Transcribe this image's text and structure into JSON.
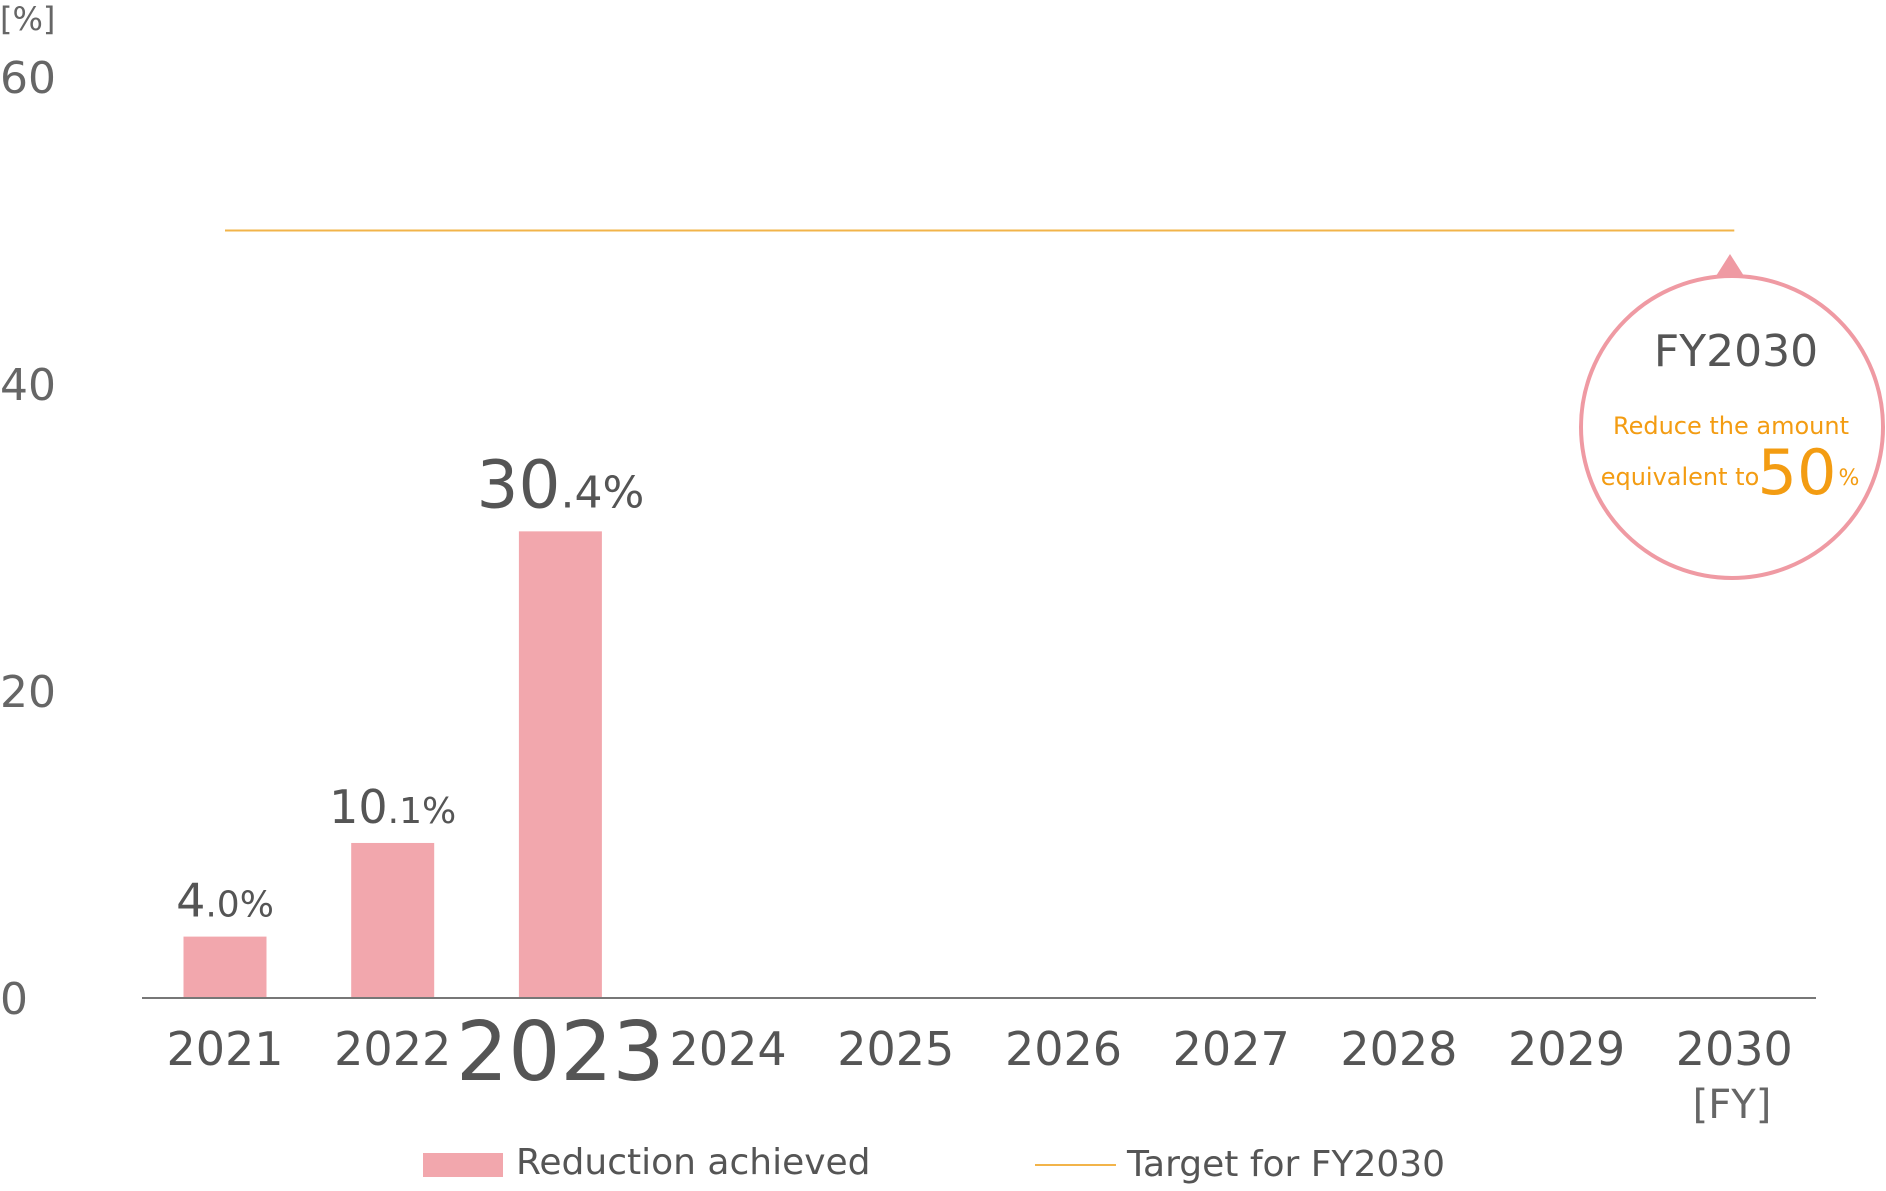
{
  "chart_data": {
    "type": "bar",
    "y_unit_label": "[%]",
    "x_unit_label": "[FY]",
    "ylim": [
      0,
      60
    ],
    "y_ticks": [
      "0",
      "20",
      "40",
      "60"
    ],
    "categories": [
      "2021",
      "2022",
      "2023",
      "2024",
      "2025",
      "2026",
      "2027",
      "2028",
      "2029",
      "2030"
    ],
    "highlight_category": "2023",
    "series": [
      {
        "name": "Reduction achieved",
        "color": "#f2a7ad",
        "values": [
          4.0,
          10.1,
          30.4,
          null,
          null,
          null,
          null,
          null,
          null,
          null
        ],
        "labels": [
          {
            "int": "4",
            "dec": ".0",
            "unit": "%"
          },
          {
            "int": "10",
            "dec": ".1",
            "unit": "%"
          },
          {
            "int": "30",
            "dec": ".4",
            "unit": "%"
          }
        ]
      }
    ],
    "target": {
      "name": "Target for FY2030",
      "value": 50,
      "color": "#f2b44a",
      "from_category": "2021",
      "to_category": "2030"
    },
    "callout": {
      "title": "FY2030",
      "line1": "Reduce the amount",
      "line2": "equivalent to",
      "value": "50",
      "unit": "%",
      "border_color": "#ef9aa3",
      "accent_color": "#f39c12"
    },
    "legend": {
      "placement": "bottom",
      "items": [
        "Reduction achieved",
        "Target for FY2030"
      ]
    },
    "grid": false
  }
}
